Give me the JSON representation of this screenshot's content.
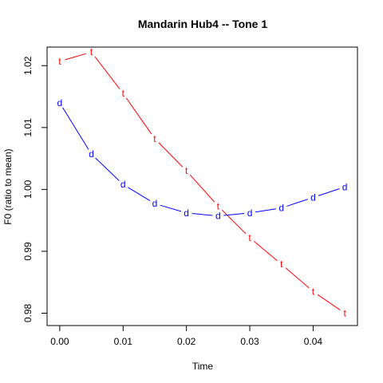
{
  "chart_data": {
    "type": "line",
    "title": "Mandarin Hub4 -- Tone 1",
    "xlabel": "Time",
    "ylabel": "F0 (ratio to mean)",
    "xlim": [
      -0.002,
      0.047
    ],
    "ylim": [
      0.978,
      1.023
    ],
    "x_ticks": [
      0.0,
      0.01,
      0.02,
      0.03,
      0.04
    ],
    "x_tick_labels": [
      "0.00",
      "0.01",
      "0.02",
      "0.03",
      "0.04"
    ],
    "y_ticks": [
      0.98,
      0.99,
      1.0,
      1.01,
      1.02
    ],
    "y_tick_labels": [
      "0.98",
      "0.99",
      "1.00",
      "1.01",
      "1.02"
    ],
    "grid": false,
    "x": [
      0.0,
      0.005,
      0.01,
      0.015,
      0.02,
      0.025,
      0.03,
      0.035,
      0.04,
      0.045
    ],
    "series": [
      {
        "marker": "t",
        "color": "#ff0000",
        "values": [
          1.0207,
          1.0222,
          1.0155,
          1.0082,
          1.003,
          0.9973,
          0.9922,
          0.9879,
          0.9835,
          0.98
        ]
      },
      {
        "marker": "d",
        "color": "#0000ff",
        "values": [
          1.014,
          1.0057,
          1.0008,
          0.9977,
          0.9962,
          0.9957,
          0.9962,
          0.997,
          0.9987,
          1.0004
        ]
      }
    ]
  }
}
